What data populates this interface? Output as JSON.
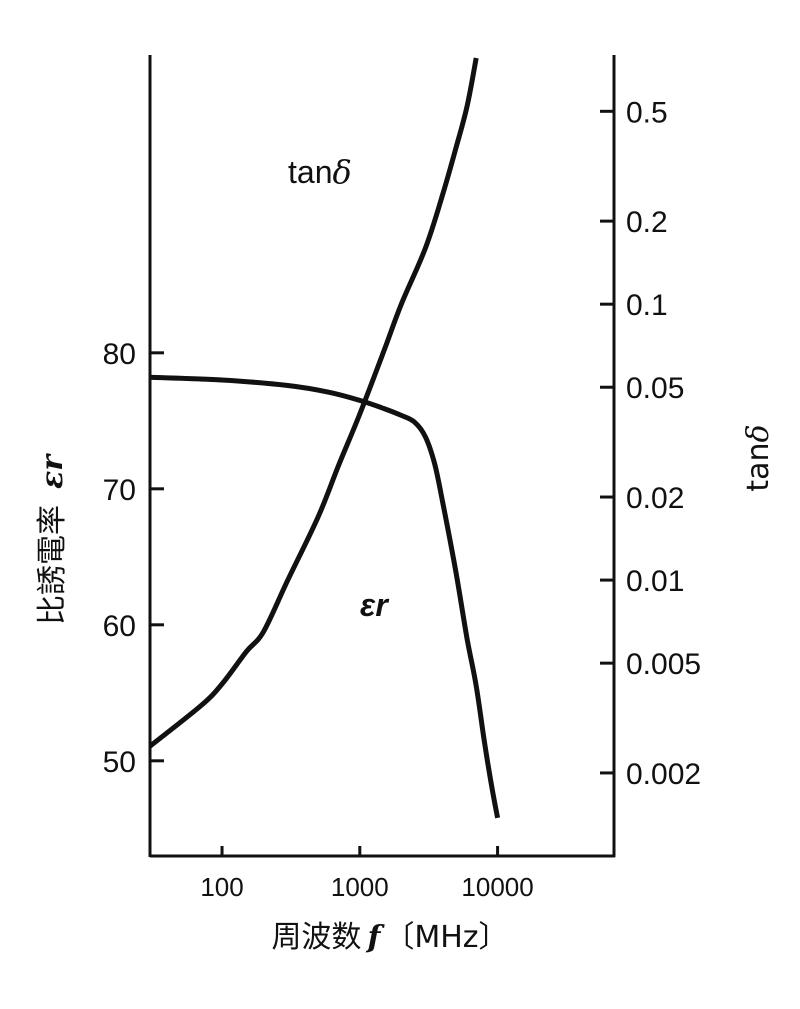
{
  "chart_data": {
    "type": "line",
    "title": "",
    "xlabel": {
      "prefix": "周波数",
      "symbol": "f",
      "unit": "〔MHz〕"
    },
    "ylabel_left": {
      "text": "比誘電率",
      "symbol": "εr"
    },
    "ylabel_right": {
      "text": "tan",
      "symbol": "δ"
    },
    "x_scale": "log",
    "xlim": [
      30,
      70000
    ],
    "x_ticks": [
      {
        "value": 100,
        "label": "100"
      },
      {
        "value": 1000,
        "label": "1000"
      },
      {
        "value": 10000,
        "label": "10000"
      }
    ],
    "y_left": {
      "scale": "linear",
      "lim": [
        43.0,
        101.9
      ],
      "ticks": [
        {
          "value": 50,
          "label": "50"
        },
        {
          "value": 60,
          "label": "60"
        },
        {
          "value": 70,
          "label": "70"
        },
        {
          "value": 80,
          "label": "80"
        }
      ]
    },
    "y_right": {
      "scale": "log",
      "lim": [
        0.001,
        0.8
      ],
      "ticks": [
        {
          "value": 0.002,
          "label": "0.002"
        },
        {
          "value": 0.005,
          "label": "0.005"
        },
        {
          "value": 0.01,
          "label": "0.01"
        },
        {
          "value": 0.02,
          "label": "0.02"
        },
        {
          "value": 0.05,
          "label": "0.05"
        },
        {
          "value": 0.1,
          "label": "0.1"
        },
        {
          "value": 0.2,
          "label": "0.2"
        },
        {
          "value": 0.5,
          "label": "0.5"
        }
      ]
    },
    "series": [
      {
        "name": "εr",
        "axis": "left",
        "points": [
          [
            30,
            78.2
          ],
          [
            100,
            78.0
          ],
          [
            300,
            77.6
          ],
          [
            600,
            77.1
          ],
          [
            1000,
            76.5
          ],
          [
            1500,
            75.9
          ],
          [
            2000,
            75.4
          ],
          [
            2500,
            74.9
          ],
          [
            3000,
            73.8
          ],
          [
            3500,
            71.8
          ],
          [
            4000,
            69.0
          ],
          [
            5000,
            63.8
          ],
          [
            6000,
            59.0
          ],
          [
            7000,
            55.5
          ],
          [
            8000,
            51.5
          ],
          [
            9000,
            48.3
          ],
          [
            10000,
            45.8
          ]
        ]
      },
      {
        "name": "tanδ",
        "axis": "right",
        "points": [
          [
            30,
            0.0025
          ],
          [
            70,
            0.0035
          ],
          [
            100,
            0.0042
          ],
          [
            150,
            0.0055
          ],
          [
            200,
            0.0065
          ],
          [
            300,
            0.01
          ],
          [
            500,
            0.017
          ],
          [
            700,
            0.026
          ],
          [
            1000,
            0.04
          ],
          [
            1500,
            0.068
          ],
          [
            2000,
            0.1
          ],
          [
            3000,
            0.16
          ],
          [
            4000,
            0.25
          ],
          [
            5000,
            0.37
          ],
          [
            6000,
            0.52
          ],
          [
            7000,
            0.78
          ]
        ]
      }
    ],
    "annotations": [
      {
        "series": "tanδ",
        "text": "tan",
        "symbol": "δ"
      },
      {
        "series": "εr",
        "symbol": "εr"
      }
    ],
    "grid": false,
    "legend": "none"
  }
}
